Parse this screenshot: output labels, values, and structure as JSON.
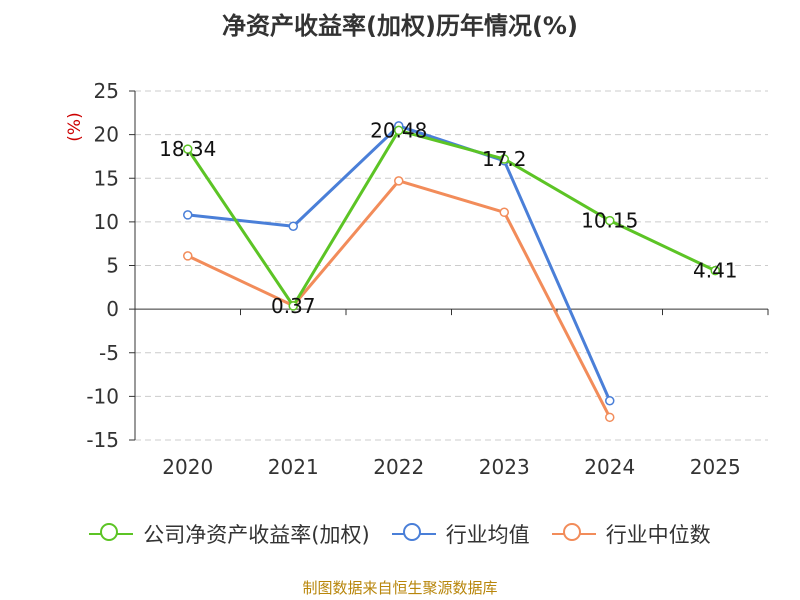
{
  "chart_data": {
    "type": "line",
    "title": "净资产收益率(加权)历年情况(%)",
    "ylabel": "(%)",
    "xlabel": "",
    "categories": [
      "2020",
      "2021",
      "2022",
      "2023",
      "2024",
      "2025"
    ],
    "ylim": [
      -15,
      25
    ],
    "yticks": [
      25,
      20,
      15,
      10,
      5,
      0,
      -5,
      -10,
      -15
    ],
    "grid": true,
    "legend_position": "bottom",
    "series": [
      {
        "name": "公司净资产收益率(加权)",
        "color": "#5cc425",
        "values": [
          18.34,
          0.37,
          20.48,
          17.2,
          10.15,
          4.41
        ],
        "labels": [
          "18.34",
          "0.37",
          "20.48",
          "17.2",
          "10.15",
          "4.41"
        ]
      },
      {
        "name": "行业均值",
        "color": "#4a7fd8",
        "values": [
          10.8,
          9.5,
          21.0,
          17.0,
          -10.5,
          null
        ]
      },
      {
        "name": "行业中位数",
        "color": "#f28c5a",
        "values": [
          6.1,
          0.4,
          14.7,
          11.1,
          -12.4,
          null
        ]
      }
    ]
  },
  "footer": {
    "source": "制图数据来自恒生聚源数据库"
  },
  "colors": {
    "axis_label": "#333333",
    "ylabel": "#cc0000",
    "source": "#b8860b"
  }
}
